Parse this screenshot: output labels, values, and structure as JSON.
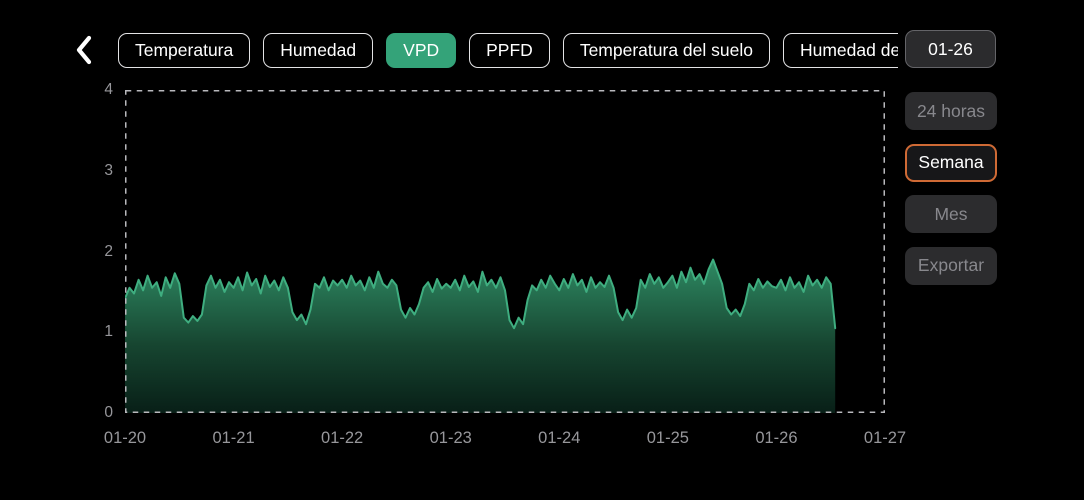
{
  "header": {
    "tabs": [
      {
        "label": "Temperatura",
        "active": false
      },
      {
        "label": "Humedad",
        "active": false
      },
      {
        "label": "VPD",
        "active": true
      },
      {
        "label": "PPFD",
        "active": false
      },
      {
        "label": "Temperatura del suelo",
        "active": false
      },
      {
        "label": "Humedad del suelo",
        "active": false
      }
    ],
    "date_button": "01-26"
  },
  "sidebar": {
    "buttons": [
      {
        "label": "24 horas",
        "active": false
      },
      {
        "label": "Semana",
        "active": true
      },
      {
        "label": "Mes",
        "active": false
      },
      {
        "label": "Exportar",
        "active": false
      }
    ]
  },
  "colors": {
    "accent_green": "#34a379",
    "active_border_orange": "#cf6a35",
    "line_green": "#3fae80",
    "fill_top": "#2e8a63",
    "fill_mid": "#174631",
    "fill_bottom": "#081f17",
    "axis_text": "#97979b",
    "dashed_border": "#b9b9bd"
  },
  "chart_data": {
    "type": "area",
    "x_tick_labels": [
      "01-20",
      "01-21",
      "01-22",
      "01-23",
      "01-24",
      "01-25",
      "01-26",
      "01-27"
    ],
    "y_ticks": [
      0,
      1,
      2,
      3,
      4
    ],
    "ylim": [
      0,
      4
    ],
    "x_domain_days": 7,
    "points_per_day": 24,
    "values": [
      1.42,
      1.55,
      1.48,
      1.65,
      1.52,
      1.7,
      1.55,
      1.62,
      1.45,
      1.68,
      1.55,
      1.73,
      1.6,
      1.18,
      1.12,
      1.2,
      1.14,
      1.22,
      1.58,
      1.7,
      1.55,
      1.65,
      1.5,
      1.62,
      1.55,
      1.68,
      1.52,
      1.74,
      1.58,
      1.66,
      1.48,
      1.7,
      1.56,
      1.64,
      1.52,
      1.68,
      1.55,
      1.25,
      1.15,
      1.22,
      1.1,
      1.28,
      1.6,
      1.55,
      1.68,
      1.52,
      1.64,
      1.58,
      1.65,
      1.55,
      1.7,
      1.58,
      1.64,
      1.52,
      1.68,
      1.55,
      1.75,
      1.6,
      1.55,
      1.65,
      1.58,
      1.28,
      1.18,
      1.3,
      1.22,
      1.35,
      1.55,
      1.62,
      1.5,
      1.66,
      1.54,
      1.6,
      1.55,
      1.65,
      1.52,
      1.7,
      1.56,
      1.63,
      1.5,
      1.75,
      1.58,
      1.65,
      1.55,
      1.68,
      1.52,
      1.15,
      1.05,
      1.18,
      1.1,
      1.4,
      1.58,
      1.52,
      1.65,
      1.55,
      1.7,
      1.6,
      1.52,
      1.66,
      1.55,
      1.72,
      1.58,
      1.65,
      1.5,
      1.68,
      1.55,
      1.62,
      1.56,
      1.7,
      1.55,
      1.25,
      1.15,
      1.28,
      1.18,
      1.3,
      1.65,
      1.55,
      1.72,
      1.6,
      1.68,
      1.55,
      1.62,
      1.7,
      1.55,
      1.75,
      1.62,
      1.8,
      1.65,
      1.72,
      1.6,
      1.78,
      1.9,
      1.75,
      1.6,
      1.3,
      1.22,
      1.28,
      1.2,
      1.35,
      1.6,
      1.52,
      1.66,
      1.55,
      1.63,
      1.57,
      1.55,
      1.65,
      1.52,
      1.68,
      1.55,
      1.62,
      1.5,
      1.7,
      1.58,
      1.65,
      1.55,
      1.68,
      1.6,
      1.05
    ]
  }
}
